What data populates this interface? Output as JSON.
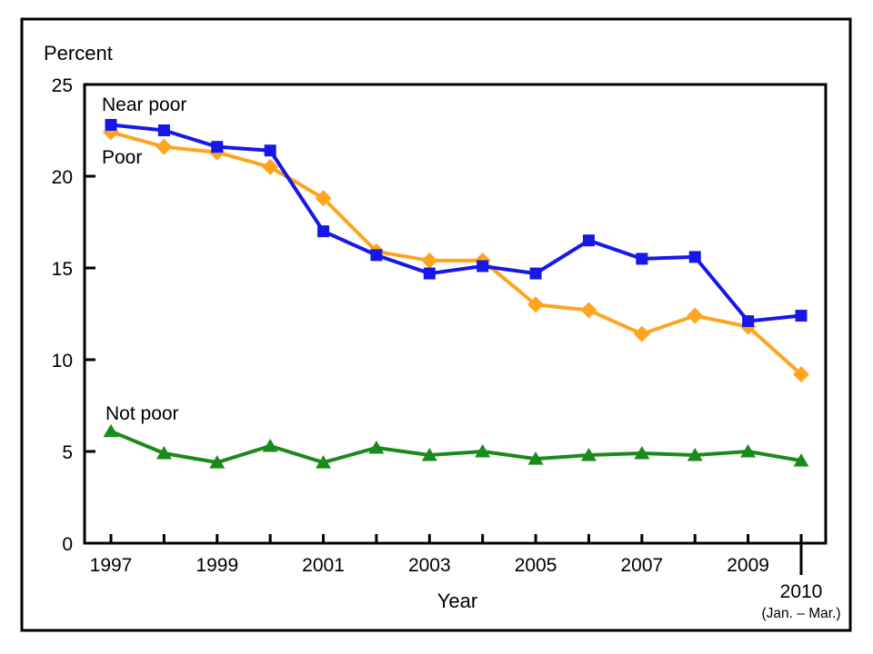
{
  "figure": {
    "background_color": "#ffffff",
    "border_color": "#000000",
    "axis_color": "#000000"
  },
  "chart_data": {
    "type": "line",
    "title": "",
    "ylabel": "Percent",
    "xlabel": "Year",
    "ylim": [
      0,
      25
    ],
    "yticks": [
      0,
      5,
      10,
      15,
      20,
      25
    ],
    "grid": false,
    "legend_position": "direct-labels-on-lines",
    "x": [
      1997,
      1998,
      1999,
      2000,
      2001,
      2002,
      2003,
      2004,
      2005,
      2006,
      2007,
      2008,
      2009,
      2010
    ],
    "labeled_years": [
      1997,
      1999,
      2001,
      2003,
      2005,
      2007,
      2009
    ],
    "final_tick": {
      "label": "2010",
      "sublabel": "(Jan. – Mar.)"
    },
    "series": [
      {
        "name": "Near poor",
        "color": "#1717e8",
        "marker": "square",
        "values": [
          22.8,
          22.5,
          21.6,
          21.4,
          17.0,
          15.7,
          14.7,
          15.1,
          14.7,
          16.5,
          15.5,
          15.6,
          12.1,
          12.4
        ]
      },
      {
        "name": "Poor",
        "color": "#ffa41e",
        "marker": "diamond",
        "values": [
          22.4,
          21.6,
          21.3,
          20.5,
          18.8,
          15.9,
          15.4,
          15.4,
          13.0,
          12.7,
          11.4,
          12.4,
          11.8,
          9.2
        ]
      },
      {
        "name": "Not poor",
        "color": "#1a8a1a",
        "marker": "triangle",
        "values": [
          6.1,
          4.9,
          4.4,
          5.3,
          4.4,
          5.2,
          4.8,
          5.0,
          4.6,
          4.8,
          4.9,
          4.8,
          5.0,
          4.5
        ]
      }
    ]
  }
}
